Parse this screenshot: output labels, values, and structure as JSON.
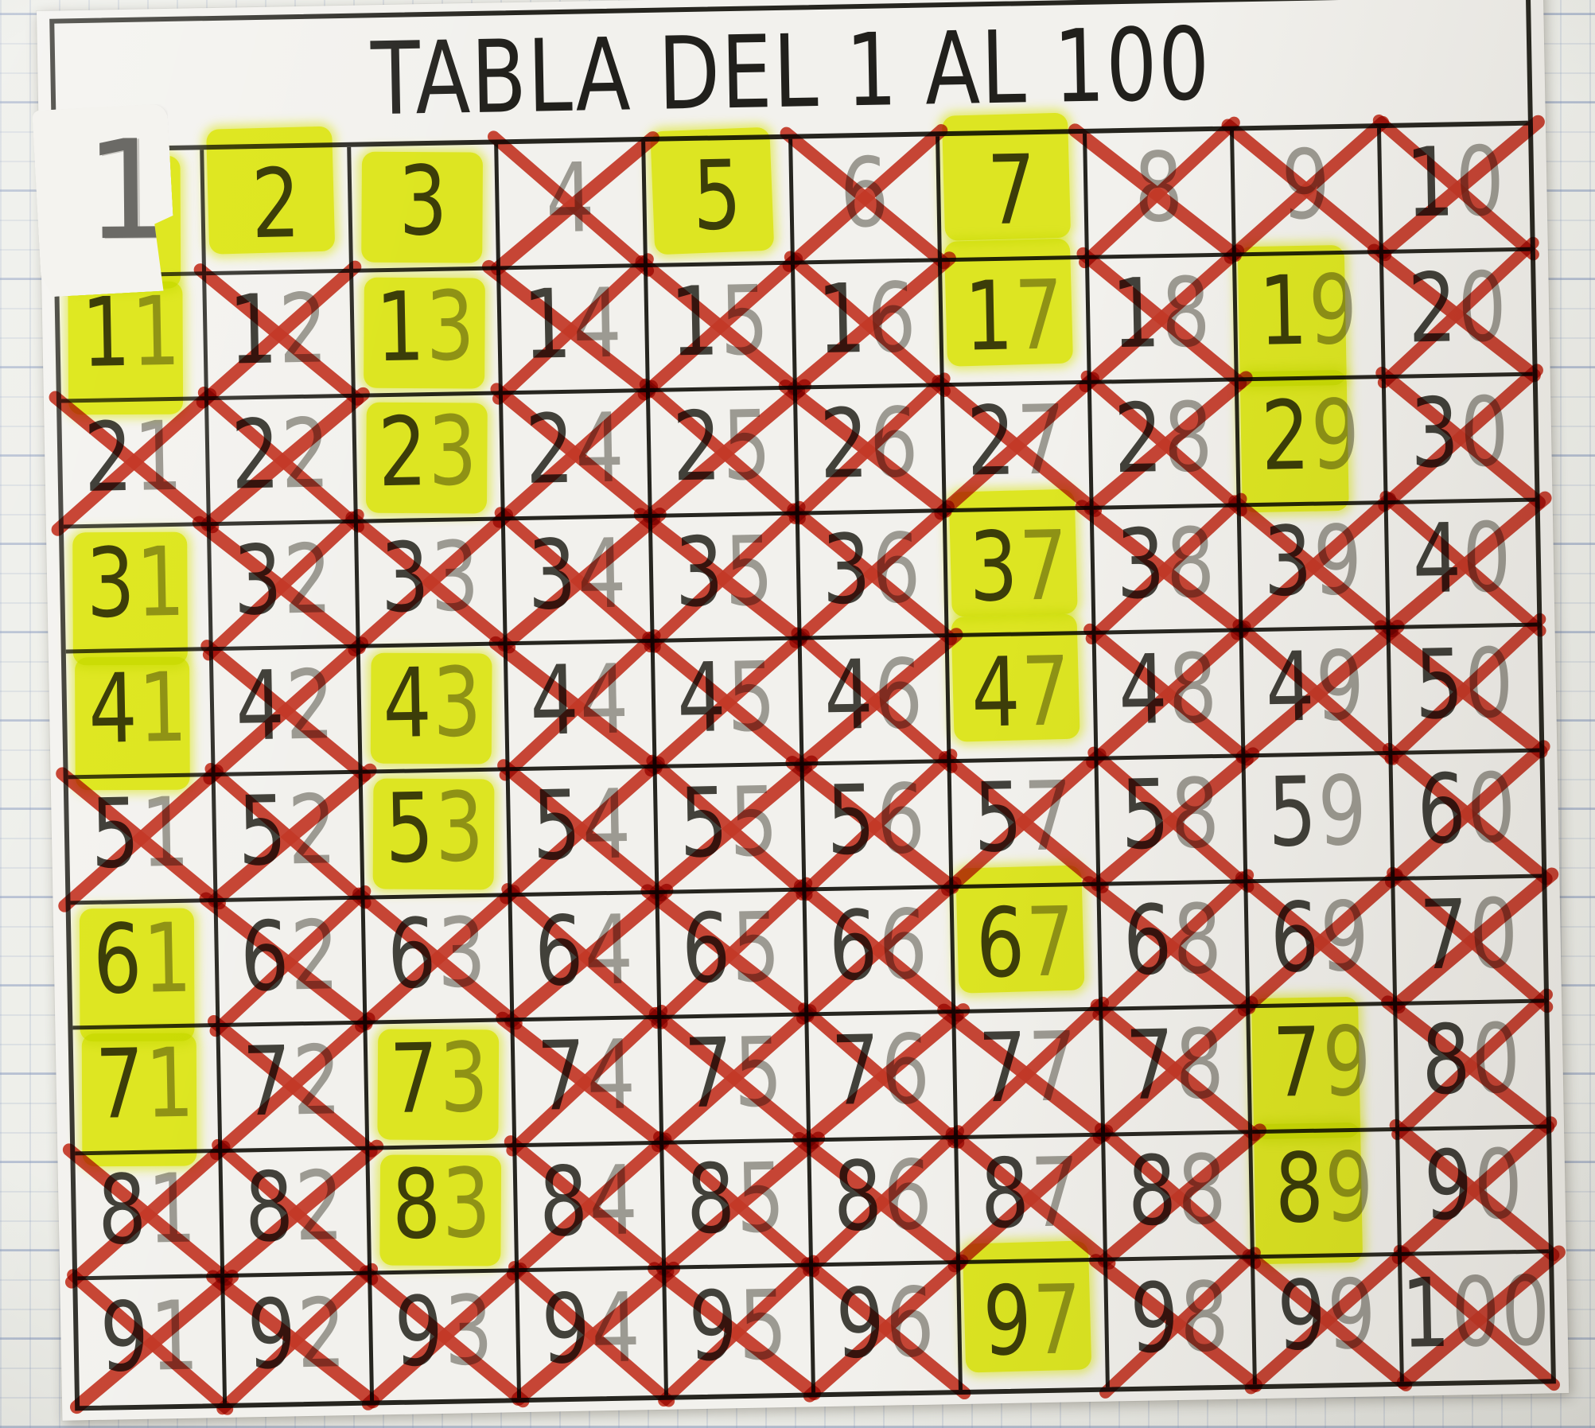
{
  "document": {
    "title": "TABLA DEL 1 AL 100"
  },
  "colors": {
    "highlighter_yellow": "#e9f324",
    "marker_red": "#cd3b2a",
    "grid_line_black": "#26251f",
    "printed_number_gray": "#a5a39d",
    "traced_pencil_dark": "#45443e",
    "worksheet_paper": "#f2f1ed",
    "notebook_paper": "#edeee9",
    "notebook_line_blue": "#7d91b9"
  },
  "grid": {
    "rows": 10,
    "cols": 10,
    "cells": [
      1,
      2,
      3,
      4,
      5,
      6,
      7,
      8,
      9,
      10,
      11,
      12,
      13,
      14,
      15,
      16,
      17,
      18,
      19,
      20,
      21,
      22,
      23,
      24,
      25,
      26,
      27,
      28,
      29,
      30,
      31,
      32,
      33,
      34,
      35,
      36,
      37,
      38,
      39,
      40,
      41,
      42,
      43,
      44,
      45,
      46,
      47,
      48,
      49,
      50,
      51,
      52,
      53,
      54,
      55,
      56,
      57,
      58,
      59,
      60,
      61,
      62,
      63,
      64,
      65,
      66,
      67,
      68,
      69,
      70,
      71,
      72,
      73,
      74,
      75,
      76,
      77,
      78,
      79,
      80,
      81,
      82,
      83,
      84,
      85,
      86,
      87,
      88,
      89,
      90,
      91,
      92,
      93,
      94,
      95,
      96,
      97,
      98,
      99,
      100
    ],
    "highlighted_numbers": [
      2,
      3,
      5,
      7,
      11,
      13,
      17,
      19,
      23,
      29,
      31,
      37,
      41,
      43,
      47,
      53,
      61,
      67,
      71,
      73,
      79,
      83,
      89,
      97
    ],
    "crossed_numbers": [
      4,
      6,
      8,
      9,
      10,
      12,
      14,
      15,
      16,
      18,
      20,
      21,
      22,
      24,
      25,
      26,
      27,
      28,
      30,
      32,
      33,
      34,
      35,
      36,
      38,
      39,
      40,
      42,
      44,
      45,
      46,
      48,
      49,
      50,
      51,
      52,
      54,
      55,
      56,
      57,
      58,
      60,
      62,
      63,
      64,
      65,
      66,
      68,
      69,
      70,
      72,
      74,
      75,
      76,
      77,
      78,
      80,
      81,
      82,
      84,
      85,
      86,
      87,
      88,
      90,
      91,
      92,
      93,
      94,
      95,
      96,
      98,
      99,
      100
    ],
    "plain_numbers": [
      59
    ],
    "patched_numbers": [
      1
    ],
    "patch": {
      "handwritten_value": "1"
    }
  }
}
